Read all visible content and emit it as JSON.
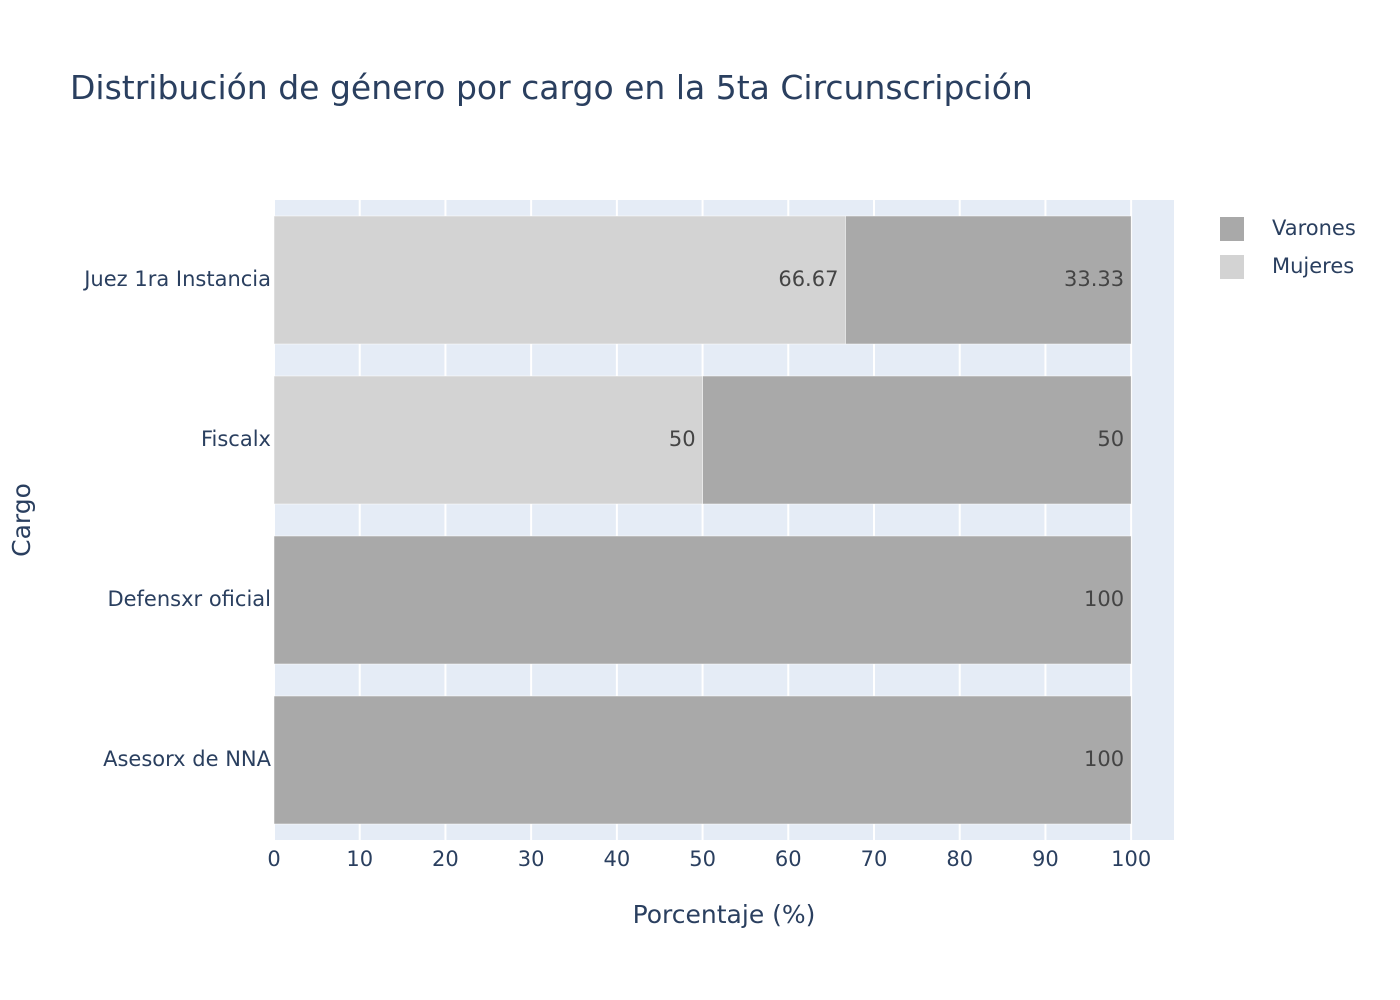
{
  "chart_data": {
    "type": "bar",
    "orientation": "horizontal",
    "barmode": "stack",
    "title": "Distribución de género por cargo en la 5ta Circunscripción",
    "xlabel": "Porcentaje (%)",
    "ylabel": "Cargo",
    "xlim": [
      0,
      105
    ],
    "xticks": [
      0,
      10,
      20,
      30,
      40,
      50,
      60,
      70,
      80,
      90,
      100
    ],
    "grid": true,
    "legend_position": "top-right",
    "categories": [
      "Juez 1ra Instancia",
      "Fiscalx",
      "Defensxr oficial",
      "Asesorx de NNA"
    ],
    "series": [
      {
        "name": "Mujeres",
        "color": "#d3d3d3",
        "values": [
          66.67,
          50,
          0,
          0
        ],
        "labels": [
          "66.67",
          "50",
          "",
          ""
        ]
      },
      {
        "name": "Varones",
        "color": "#a9a9a9",
        "values": [
          33.33,
          50,
          100,
          100
        ],
        "labels": [
          "33.33",
          "50",
          "100",
          "100"
        ]
      }
    ],
    "legend": [
      {
        "name": "Varones",
        "color": "#a9a9a9"
      },
      {
        "name": "Mujeres",
        "color": "#d3d3d3"
      }
    ],
    "colors": {
      "plot_background": "#e5ecf6",
      "grid": "#ffffff",
      "text": "#2a3f5f"
    }
  }
}
